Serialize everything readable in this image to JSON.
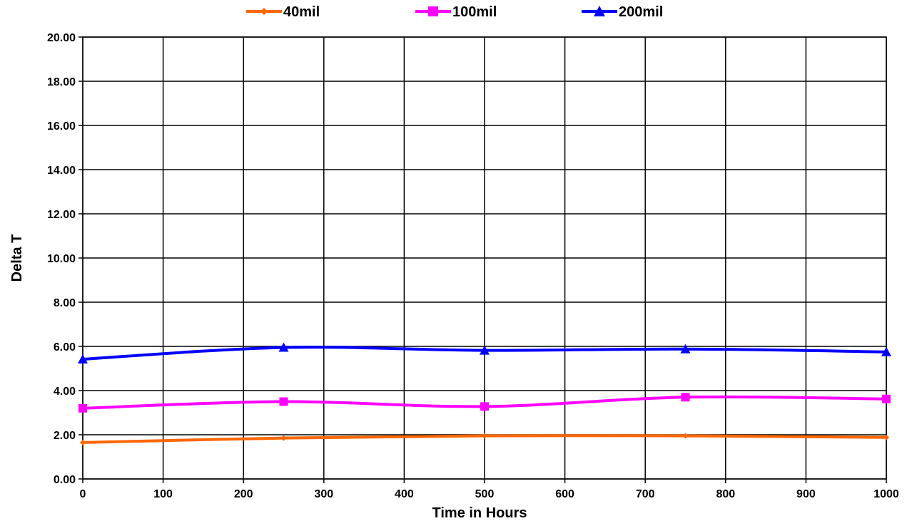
{
  "chart_data": {
    "type": "line",
    "title": "",
    "xlabel": "Time in Hours",
    "ylabel": "Delta T",
    "xlim": [
      0,
      1000
    ],
    "ylim": [
      0,
      20
    ],
    "xticks": [
      0,
      100,
      200,
      300,
      400,
      500,
      600,
      700,
      800,
      900,
      1000
    ],
    "yticks": [
      0,
      2,
      4,
      6,
      8,
      10,
      12,
      14,
      16,
      18,
      20
    ],
    "xtick_labels": [
      "0",
      "100",
      "200",
      "300",
      "400",
      "500",
      "600",
      "700",
      "800",
      "900",
      "1000"
    ],
    "ytick_labels": [
      "0.00",
      "2.00",
      "4.00",
      "6.00",
      "8.00",
      "10.00",
      "12.00",
      "14.00",
      "16.00",
      "18.00",
      "20.00"
    ],
    "grid": true,
    "smooth": true,
    "legend_position": "top",
    "x": [
      0,
      250,
      500,
      750,
      1000
    ],
    "series": [
      {
        "name": "40mil",
        "values": [
          1.65,
          1.85,
          1.95,
          1.95,
          1.88
        ],
        "color": "#ff6600",
        "marker": "diamond"
      },
      {
        "name": "100mil",
        "values": [
          3.2,
          3.5,
          3.28,
          3.7,
          3.62
        ],
        "color": "#ff00ff",
        "marker": "square"
      },
      {
        "name": "200mil",
        "values": [
          5.42,
          5.95,
          5.82,
          5.88,
          5.75
        ],
        "color": "#0000ff",
        "marker": "triangle"
      }
    ]
  }
}
